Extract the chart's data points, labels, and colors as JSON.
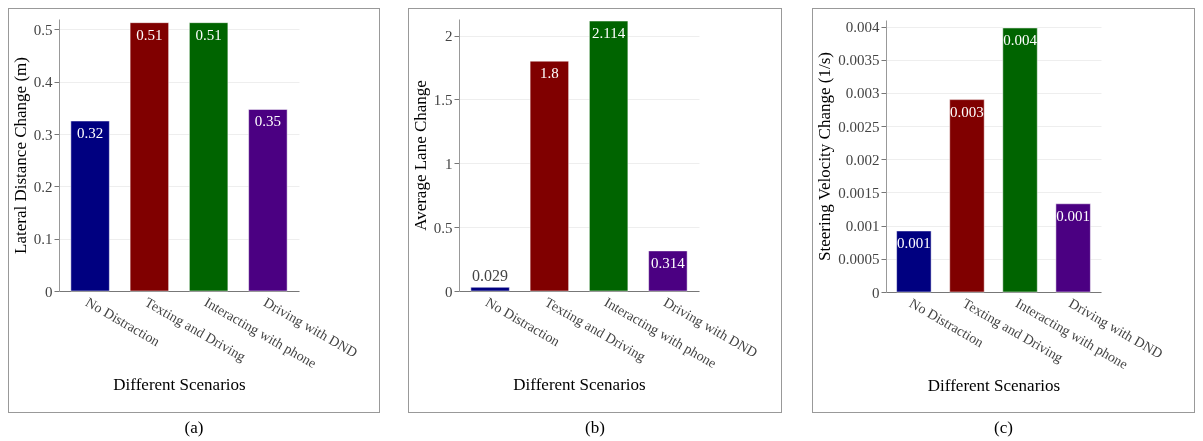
{
  "chart_data": [
    {
      "type": "bar",
      "xlabel": "Different Scenarios",
      "ylabel": "Lateral Distance Change (m)",
      "categories": [
        "No Distraction",
        "Texting and Driving",
        "Interacting with phone",
        "Driving with DND"
      ],
      "values": [
        0.325,
        0.513,
        0.513,
        0.347
      ],
      "value_labels": [
        "0.32",
        "0.51",
        "0.51",
        "0.35"
      ],
      "colors": [
        "#000080",
        "#800000",
        "#006400",
        "#4b0082"
      ],
      "ylim": [
        0,
        0.52
      ],
      "yticks": [
        0,
        0.1,
        0.2,
        0.3,
        0.4,
        0.5
      ],
      "grid": "y",
      "annotations": [
        "(a)"
      ]
    },
    {
      "type": "bar",
      "xlabel": "Different Scenarios",
      "ylabel": "Average Lane Change",
      "categories": [
        "No Distraction",
        "Texting and Driving",
        "Interacting with phone",
        "Driving with DND"
      ],
      "values": [
        0.029,
        1.8,
        2.114,
        0.314
      ],
      "data_labels": true,
      "colors": [
        "#000080",
        "#800000",
        "#006400",
        "#4b0082"
      ],
      "ylim": [
        0,
        2.13
      ],
      "yticks": [
        0,
        0.5,
        1,
        1.5,
        2
      ],
      "grid": "y",
      "annotations": [
        "(b)"
      ]
    },
    {
      "type": "bar",
      "xlabel": "Different Scenarios",
      "ylabel": "Steering Velocity Change (1/s)",
      "categories": [
        "No Distraction",
        "Texting and Driving",
        "Interacting with phone",
        "Driving with DND"
      ],
      "values": [
        0.00092,
        0.0029,
        0.00398,
        0.00133
      ],
      "value_labels": [
        "0.001",
        "0.003",
        "0.004",
        "0.001"
      ],
      "colors": [
        "#000080",
        "#800000",
        "#006400",
        "#4b0082"
      ],
      "ylim": [
        0,
        0.0041
      ],
      "yticks": [
        0,
        0.0005,
        0.001,
        0.0015,
        0.002,
        0.0025,
        0.003,
        0.0035,
        0.004
      ],
      "grid": "y",
      "annotations": [
        "(c)"
      ]
    }
  ]
}
